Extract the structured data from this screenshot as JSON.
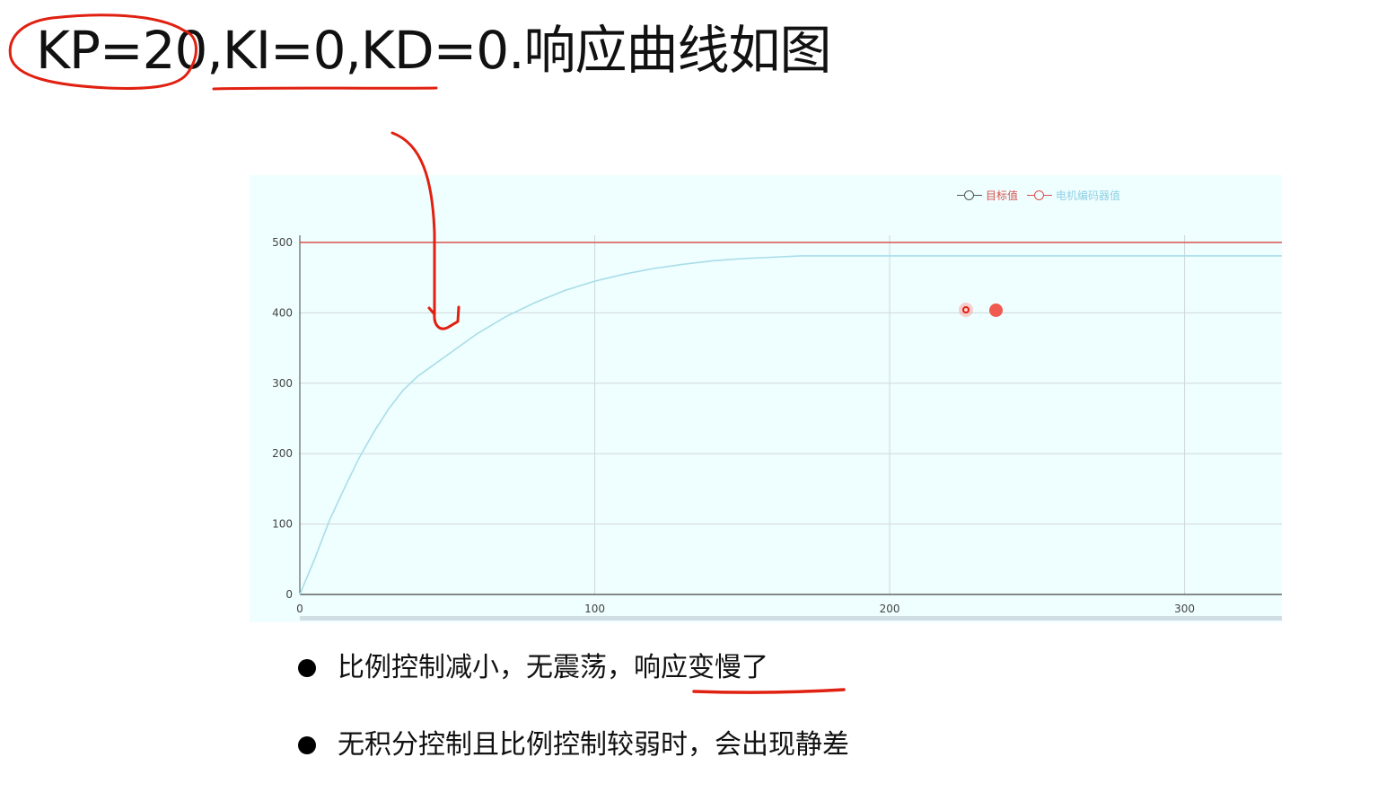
{
  "slide": {
    "title": "KP=20,KI=0,KD=0.响应曲线如图",
    "bullets": [
      {
        "text": "比例控制减小，无震荡，响应变慢了"
      },
      {
        "text": "无积分控制且比例控制较弱时，会出现静差"
      }
    ]
  },
  "colors": {
    "target_line": "#d9534f",
    "encoder_line": "#a8dde9",
    "chart_bg": "#effefe",
    "annotation_red": "#e02010",
    "grid": "#cfd8dc"
  },
  "chart_data": {
    "type": "line",
    "title": "",
    "xlabel": "",
    "ylabel": "",
    "xlim": [
      0,
      333
    ],
    "ylim": [
      0,
      500
    ],
    "xticks": [
      0,
      100,
      200,
      300
    ],
    "yticks": [
      0,
      100,
      200,
      300,
      400,
      500
    ],
    "grid": true,
    "legend_position": "top-right",
    "series": [
      {
        "name": "目标值",
        "color": "#d9534f",
        "x": [
          0,
          333
        ],
        "y": [
          500,
          500
        ]
      },
      {
        "name": "电机编码器值",
        "color": "#a8dde9",
        "x": [
          0,
          5,
          10,
          15,
          20,
          25,
          30,
          35,
          40,
          45,
          50,
          60,
          70,
          80,
          90,
          100,
          110,
          120,
          130,
          140,
          150,
          160,
          170,
          180,
          200,
          250,
          300,
          333
        ],
        "y": [
          0,
          50,
          105,
          150,
          193,
          230,
          263,
          290,
          310,
          325,
          340,
          370,
          395,
          415,
          432,
          445,
          455,
          463,
          469,
          474,
          477,
          479,
          481,
          481,
          481,
          481,
          481,
          481
        ]
      }
    ]
  }
}
